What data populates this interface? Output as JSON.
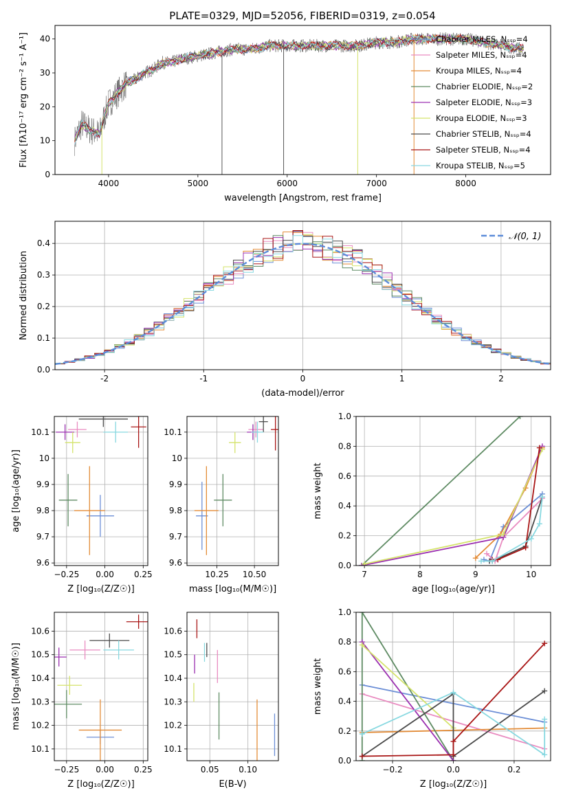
{
  "figure_title": "PLATE=0329, MJD=52056, FIBERID=0319, z=0.054",
  "colors": [
    "#6b8ed6",
    "#e98bc0",
    "#e38b36",
    "#5d8a62",
    "#9b2fb0",
    "#d4e36a",
    "#4a4a4a",
    "#a81414",
    "#86d8e0"
  ],
  "chart_data": [
    {
      "id": "spectrum",
      "type": "line",
      "title": "PLATE=0329, MJD=52056, FIBERID=0319, z=0.054",
      "xlabel": "wavelength [Angstrom, rest frame]",
      "ylabel": "Flux [fλ10⁻¹⁷ erg cm⁻² s⁻¹ A⁻¹]",
      "xlim": [
        3400,
        8950
      ],
      "ylim": [
        0,
        44
      ],
      "xticks": [
        4000,
        5000,
        6000,
        7000,
        8000
      ],
      "yticks": [
        0,
        10,
        20,
        30,
        40
      ],
      "grid": false,
      "legend_position": "upper right",
      "series": [
        {
          "name": "Chabrier MILES, N_SSP=4"
        },
        {
          "name": "Salpeter MILES, N_SSP=4"
        },
        {
          "name": "Kroupa MILES, N_SSP=4"
        },
        {
          "name": "Chabrier ELODIE, N_SSP=2"
        },
        {
          "name": "Salpeter ELODIE, N_SSP=3"
        },
        {
          "name": "Kroupa ELODIE, N_SSP=3"
        },
        {
          "name": "Chabrier STELIB, N_SSP=4"
        },
        {
          "name": "Salpeter STELIB, N_SSP=4"
        },
        {
          "name": "Kroupa STELIB, N_SSP=5"
        }
      ],
      "continuum": {
        "x": [
          3620,
          3700,
          3800,
          3900,
          3950,
          4000,
          4100,
          4200,
          4300,
          4400,
          4500,
          4600,
          4700,
          4800,
          5000,
          5200,
          5400,
          5600,
          5800,
          6000,
          6200,
          6400,
          6600,
          6800,
          7000,
          7200,
          7400,
          7600,
          7800,
          8000,
          8200,
          8400,
          8650
        ],
        "y": [
          10,
          15,
          13,
          12,
          17,
          21,
          24,
          27,
          28,
          30,
          31,
          33,
          33,
          34,
          35,
          36,
          37,
          37,
          38,
          38,
          38,
          38,
          38,
          38,
          39,
          39,
          40,
          40,
          40,
          40,
          39,
          38,
          37
        ]
      }
    },
    {
      "id": "residuals",
      "type": "bar",
      "xlabel": "(data-model)/error",
      "ylabel": "Normed distribution",
      "xlim": [
        -2.5,
        2.5
      ],
      "ylim": [
        0,
        0.47
      ],
      "xticks": [
        -2,
        -1,
        0,
        1,
        2
      ],
      "yticks": [
        0.0,
        0.1,
        0.2,
        0.3,
        0.4
      ],
      "grid": true,
      "legend_position": "upper right",
      "reference": {
        "name": "𝒩(0, 1)",
        "mean": 0,
        "sigma": 1
      }
    },
    {
      "id": "age-vs-Z",
      "type": "scatter",
      "xlabel": "Z [log₁₀(Z/Z☉)]",
      "ylabel": "age  [log₁₀(age/yr)]",
      "xlim": [
        -0.33,
        0.28
      ],
      "ylim": [
        9.59,
        10.16
      ],
      "xticks": [
        -0.25,
        0.0,
        0.25
      ],
      "xtick_labels": [
        "−0.25",
        "0.00",
        "0.25"
      ],
      "yticks": [
        9.6,
        9.7,
        9.8,
        9.9,
        10.0,
        10.1
      ],
      "grid": true,
      "points": [
        {
          "x": -0.03,
          "xerr": 0.09,
          "y": 9.78,
          "yerr": 0.08
        },
        {
          "x": -0.18,
          "xerr": 0.06,
          "y": 10.11,
          "yerr": 0.03
        },
        {
          "x": -0.1,
          "xerr": 0.1,
          "y": 9.8,
          "yerr": 0.17
        },
        {
          "x": -0.24,
          "xerr": 0.06,
          "y": 9.84,
          "yerr": 0.1
        },
        {
          "x": -0.26,
          "xerr": 0.06,
          "y": 10.1,
          "yerr": 0.03
        },
        {
          "x": -0.21,
          "xerr": 0.05,
          "y": 10.06,
          "yerr": 0.04
        },
        {
          "x": -0.01,
          "xerr": 0.16,
          "y": 10.15,
          "yerr": 0.03
        },
        {
          "x": 0.22,
          "xerr": 0.05,
          "y": 10.12,
          "yerr": 0.08
        },
        {
          "x": 0.07,
          "xerr": 0.08,
          "y": 10.1,
          "yerr": 0.04
        }
      ]
    },
    {
      "id": "age-vs-mass",
      "type": "scatter",
      "xlabel": "mass [log₁₀(M/M☉)]",
      "ylabel": "",
      "xlim": [
        10.05,
        10.66
      ],
      "ylim": [
        9.59,
        10.16
      ],
      "xticks": [
        10.25,
        10.5
      ],
      "xtick_labels": [
        "10.25",
        "10.50"
      ],
      "yticks": [
        9.6,
        9.7,
        9.8,
        9.9,
        10.0,
        10.1
      ],
      "grid": true,
      "points": [
        {
          "x": 10.15,
          "xerr": 0.04,
          "y": 9.78,
          "yerr": 0.13
        },
        {
          "x": 10.51,
          "xerr": 0.05,
          "y": 10.11,
          "yerr": 0.03
        },
        {
          "x": 10.18,
          "xerr": 0.08,
          "y": 9.8,
          "yerr": 0.17
        },
        {
          "x": 10.29,
          "xerr": 0.06,
          "y": 9.84,
          "yerr": 0.1
        },
        {
          "x": 10.49,
          "xerr": 0.04,
          "y": 10.1,
          "yerr": 0.03
        },
        {
          "x": 10.37,
          "xerr": 0.04,
          "y": 10.06,
          "yerr": 0.04
        },
        {
          "x": 10.56,
          "xerr": 0.03,
          "y": 10.14,
          "yerr": 0.04
        },
        {
          "x": 10.64,
          "xerr": 0.03,
          "y": 10.11,
          "yerr": 0.08
        },
        {
          "x": 10.52,
          "xerr": 0.04,
          "y": 10.1,
          "yerr": 0.04
        }
      ]
    },
    {
      "id": "weight-vs-age",
      "type": "line",
      "xlabel": "age  [log₁₀(age/yr)]",
      "ylabel": "mass weight",
      "xlim": [
        6.85,
        10.35
      ],
      "ylim": [
        0,
        1
      ],
      "xticks": [
        7,
        8,
        9,
        10
      ],
      "yticks": [
        0.0,
        0.2,
        0.4,
        0.6,
        0.8,
        1.0
      ],
      "grid": true,
      "series": [
        {
          "x": [
            9.15,
            9.25,
            9.5,
            10.2
          ],
          "y": [
            0.04,
            0.03,
            0.26,
            0.48
          ]
        },
        {
          "x": [
            9.2,
            9.35,
            9.5,
            10.2
          ],
          "y": [
            0.08,
            0.03,
            0.19,
            0.45
          ]
        },
        {
          "x": [
            9.0,
            9.45,
            9.9,
            10.2
          ],
          "y": [
            0.05,
            0.21,
            0.52,
            0.79
          ]
        },
        {
          "x": [
            6.95,
            9.8
          ],
          "y": [
            0.0,
            1.0
          ]
        },
        {
          "x": [
            6.95,
            9.5,
            10.2
          ],
          "y": [
            0.0,
            0.19,
            0.8
          ]
        },
        {
          "x": [
            7.0,
            9.5,
            10.2
          ],
          "y": [
            0.01,
            0.21,
            0.78
          ]
        },
        {
          "x": [
            9.25,
            9.3,
            9.9,
            10.2
          ],
          "y": [
            0.03,
            0.03,
            0.13,
            0.46
          ]
        },
        {
          "x": [
            9.3,
            9.4,
            9.9,
            10.15
          ],
          "y": [
            0.04,
            0.04,
            0.12,
            0.79
          ]
        },
        {
          "x": [
            9.1,
            9.3,
            10.0,
            10.15,
            10.2
          ],
          "y": [
            0.03,
            0.03,
            0.18,
            0.28,
            0.46
          ]
        }
      ]
    },
    {
      "id": "mass-vs-Z",
      "type": "scatter",
      "xlabel": "Z [log₁₀(Z/Z☉)]",
      "ylabel": "mass [log₁₀(M/M☉)]",
      "xlim": [
        -0.33,
        0.28
      ],
      "ylim": [
        10.05,
        10.68
      ],
      "xticks": [
        -0.25,
        0.0,
        0.25
      ],
      "xtick_labels": [
        "−0.25",
        "0.00",
        "0.25"
      ],
      "yticks": [
        10.1,
        10.2,
        10.3,
        10.4,
        10.5,
        10.6
      ],
      "grid": true,
      "points": [
        {
          "x": -0.03,
          "xerr": 0.09,
          "y": 10.15,
          "yerr": 0.03
        },
        {
          "x": -0.13,
          "xerr": 0.1,
          "y": 10.52,
          "yerr": 0.04
        },
        {
          "x": -0.03,
          "xerr": 0.14,
          "y": 10.18,
          "yerr": 0.13
        },
        {
          "x": -0.25,
          "xerr": 0.1,
          "y": 10.29,
          "yerr": 0.06
        },
        {
          "x": -0.3,
          "xerr": 0.05,
          "y": 10.49,
          "yerr": 0.04
        },
        {
          "x": -0.23,
          "xerr": 0.08,
          "y": 10.37,
          "yerr": 0.04
        },
        {
          "x": 0.03,
          "xerr": 0.13,
          "y": 10.56,
          "yerr": 0.03
        },
        {
          "x": 0.22,
          "xerr": 0.08,
          "y": 10.64,
          "yerr": 0.03
        },
        {
          "x": 0.09,
          "xerr": 0.1,
          "y": 10.52,
          "yerr": 0.04
        }
      ]
    },
    {
      "id": "mass-vs-ebv",
      "type": "scatter",
      "xlabel": "E(B-V)",
      "ylabel": "",
      "xlim": [
        0.02,
        0.14
      ],
      "ylim": [
        10.05,
        10.68
      ],
      "xticks": [
        0.05,
        0.1
      ],
      "xtick_labels": [
        "0.05",
        "0.10"
      ],
      "yticks": [
        10.1,
        10.2,
        10.3,
        10.4,
        10.5,
        10.6
      ],
      "grid": true,
      "points": [
        {
          "x": 0.135,
          "xerr": 0,
          "y": 10.16,
          "yerr": 0.09
        },
        {
          "x": 0.06,
          "xerr": 0,
          "y": 10.45,
          "yerr": 0.07
        },
        {
          "x": 0.112,
          "xerr": 0,
          "y": 10.18,
          "yerr": 0.13
        },
        {
          "x": 0.062,
          "xerr": 0,
          "y": 10.24,
          "yerr": 0.1
        },
        {
          "x": 0.03,
          "xerr": 0,
          "y": 10.46,
          "yerr": 0.04
        },
        {
          "x": 0.029,
          "xerr": 0,
          "y": 10.34,
          "yerr": 0.04
        },
        {
          "x": 0.046,
          "xerr": 0,
          "y": 10.52,
          "yerr": 0.03
        },
        {
          "x": 0.033,
          "xerr": 0,
          "y": 10.61,
          "yerr": 0.04
        },
        {
          "x": 0.043,
          "xerr": 0,
          "y": 10.51,
          "yerr": 0.04
        }
      ]
    },
    {
      "id": "weight-vs-Z",
      "type": "line",
      "xlabel": "Z [log₁₀(Z/Z☉)]",
      "ylabel": "mass weight",
      "xlim": [
        -0.32,
        0.32
      ],
      "ylim": [
        0,
        1
      ],
      "xticks": [
        -0.2,
        0.0,
        0.2
      ],
      "xtick_labels": [
        "−0.2",
        "0.0",
        "0.2"
      ],
      "yticks": [
        0.0,
        0.2,
        0.4,
        0.6,
        0.8,
        1.0
      ],
      "grid": true,
      "series": [
        {
          "x": [
            -0.3,
            0.3
          ],
          "y": [
            0.51,
            0.26
          ]
        },
        {
          "x": [
            -0.3,
            0.3
          ],
          "y": [
            0.45,
            0.08
          ]
        },
        {
          "x": [
            -0.3,
            0.3
          ],
          "y": [
            0.19,
            0.22
          ]
        },
        {
          "x": [
            -0.3,
            -0.3,
            0.0
          ],
          "y": [
            0.0,
            1.0,
            0.0
          ]
        },
        {
          "x": [
            -0.3,
            0.0
          ],
          "y": [
            0.8,
            0.0
          ]
        },
        {
          "x": [
            -0.3,
            0.0
          ],
          "y": [
            0.78,
            0.22
          ]
        },
        {
          "x": [
            -0.3,
            0.0,
            0.0,
            0.3
          ],
          "y": [
            0.03,
            0.45,
            0.03,
            0.47
          ]
        },
        {
          "x": [
            -0.3,
            0.0,
            0.0,
            0.3
          ],
          "y": [
            0.03,
            0.04,
            0.13,
            0.79
          ]
        },
        {
          "x": [
            -0.3,
            0.0,
            0.3,
            0.3
          ],
          "y": [
            0.18,
            0.46,
            0.04,
            0.28
          ]
        }
      ]
    }
  ]
}
